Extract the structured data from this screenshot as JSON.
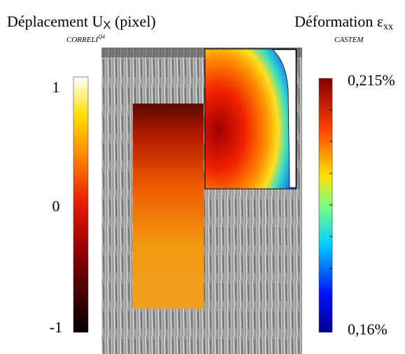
{
  "left_header": {
    "title": "Déplacement U",
    "title_sub": "X",
    "title_unit": "(pixel)",
    "source": "CORRELI",
    "source_sup": "Q4"
  },
  "right_header": {
    "title": "Déformation ε",
    "title_sub": "xx",
    "source": "CASTEM"
  },
  "left_colorbar": {
    "top": "1",
    "middle": "0",
    "bottom": "-1"
  },
  "right_colorbar": {
    "top": "0,215%",
    "bottom": "0,16%"
  }
}
